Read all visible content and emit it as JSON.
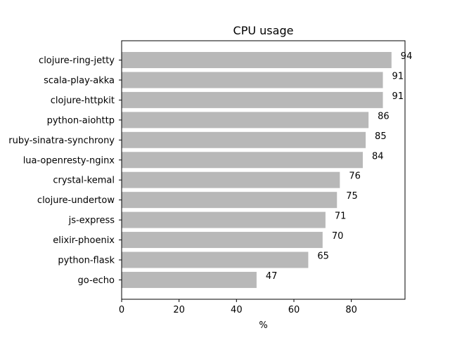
{
  "chart_data": {
    "type": "bar",
    "orientation": "horizontal",
    "title": "CPU usage",
    "xlabel": "%",
    "ylabel": "",
    "categories": [
      "clojure-ring-jetty",
      "scala-play-akka",
      "clojure-httpkit",
      "python-aiohttp",
      "ruby-sinatra-synchrony",
      "lua-openresty-nginx",
      "crystal-kemal",
      "clojure-undertow",
      "js-express",
      "elixir-phoenix",
      "python-flask",
      "go-echo"
    ],
    "values": [
      94,
      91,
      91,
      86,
      85,
      84,
      76,
      75,
      71,
      70,
      65,
      47
    ],
    "value_labels": [
      "94",
      "91",
      "91",
      "86",
      "85",
      "84",
      "76",
      "75",
      "71",
      "70",
      "65",
      "47"
    ],
    "xlim": [
      0,
      98.7
    ],
    "xticks": [
      0,
      20,
      40,
      60,
      80
    ],
    "xtick_labels": [
      "0",
      "20",
      "40",
      "60",
      "80"
    ],
    "grid": false,
    "legend": "none",
    "bar_color": "#b8b8b8"
  }
}
